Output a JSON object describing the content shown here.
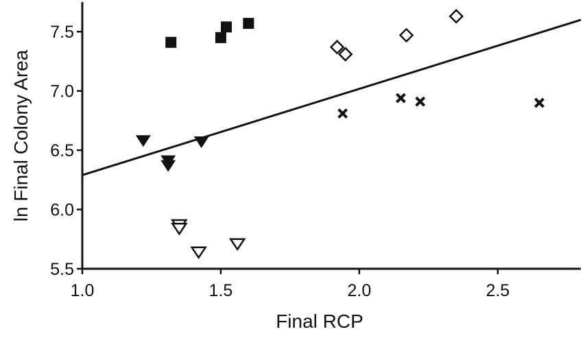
{
  "chart_data": {
    "type": "scatter",
    "title": "",
    "xlabel": "Final RCP",
    "ylabel": "ln Final Colony Area",
    "xlim": [
      1.0,
      2.8
    ],
    "ylim": [
      5.5,
      7.75
    ],
    "x_ticks": [
      "1.0",
      "1.5",
      "2.0",
      "2.5"
    ],
    "y_ticks": [
      "5.5",
      "6.0",
      "6.5",
      "7.0",
      "7.5"
    ],
    "grid": false,
    "legend": "none",
    "series": [
      {
        "marker": "filled-square",
        "points": [
          [
            1.32,
            7.41
          ],
          [
            1.5,
            7.45
          ],
          [
            1.52,
            7.54
          ],
          [
            1.6,
            7.57
          ]
        ]
      },
      {
        "marker": "open-diamond",
        "points": [
          [
            1.92,
            7.37
          ],
          [
            1.95,
            7.31
          ],
          [
            2.17,
            7.47
          ],
          [
            2.35,
            7.63
          ]
        ]
      },
      {
        "marker": "filled-triangle-down",
        "points": [
          [
            1.22,
            6.58
          ],
          [
            1.31,
            6.41
          ],
          [
            1.31,
            6.37
          ],
          [
            1.43,
            6.57
          ]
        ]
      },
      {
        "marker": "x-cross",
        "points": [
          [
            1.94,
            6.81
          ],
          [
            2.15,
            6.94
          ],
          [
            2.22,
            6.91
          ],
          [
            2.65,
            6.9
          ]
        ]
      },
      {
        "marker": "open-triangle-down",
        "points": [
          [
            1.35,
            5.87
          ],
          [
            1.35,
            5.84
          ],
          [
            1.42,
            5.64
          ],
          [
            1.56,
            5.71
          ]
        ]
      }
    ],
    "fit_line": {
      "x": [
        1.0,
        2.8
      ],
      "y": [
        6.29,
        7.6
      ]
    }
  }
}
